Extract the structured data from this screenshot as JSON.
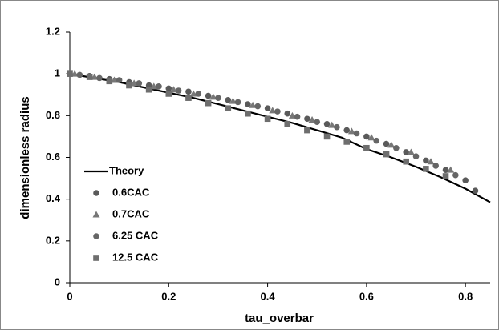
{
  "chart_data": {
    "type": "scatter",
    "xlabel": "tau_overbar",
    "ylabel": "dimensionless radius",
    "xlim": [
      0,
      0.85
    ],
    "ylim": [
      0,
      1.2
    ],
    "xticks": [
      0,
      0.2,
      0.4,
      0.6,
      0.8
    ],
    "yticks": [
      0,
      0.2,
      0.4,
      0.6,
      0.8,
      1,
      1.2
    ],
    "legend": "left",
    "series": [
      {
        "name": "Theory",
        "color": "#000000",
        "marker": "line",
        "x": [
          0,
          0.05,
          0.1,
          0.15,
          0.2,
          0.25,
          0.3,
          0.35,
          0.4,
          0.45,
          0.5,
          0.55,
          0.6,
          0.65,
          0.7,
          0.75,
          0.8,
          0.85
        ],
        "values": [
          1.0,
          0.98,
          0.96,
          0.935,
          0.91,
          0.885,
          0.855,
          0.825,
          0.795,
          0.765,
          0.73,
          0.695,
          0.64,
          0.6,
          0.555,
          0.505,
          0.45,
          0.385
        ]
      },
      {
        "name": "0.6CAC",
        "color": "#5a5a5a",
        "marker": "circle",
        "x": [
          0,
          0.04,
          0.08,
          0.12,
          0.16,
          0.2,
          0.24,
          0.28,
          0.32,
          0.36,
          0.4,
          0.44,
          0.48,
          0.52,
          0.56,
          0.6,
          0.64,
          0.68,
          0.72,
          0.76,
          0.8,
          0.82
        ],
        "values": [
          1.0,
          0.99,
          0.975,
          0.96,
          0.945,
          0.93,
          0.915,
          0.895,
          0.875,
          0.855,
          0.835,
          0.81,
          0.785,
          0.76,
          0.73,
          0.7,
          0.665,
          0.625,
          0.585,
          0.54,
          0.49,
          0.44
        ]
      },
      {
        "name": "0.7CAC",
        "color": "#777777",
        "marker": "triangle",
        "x": [
          0.01,
          0.05,
          0.09,
          0.13,
          0.17,
          0.21,
          0.25,
          0.29,
          0.33,
          0.37,
          0.41,
          0.45,
          0.49,
          0.53,
          0.57,
          0.61,
          0.65,
          0.69,
          0.73,
          0.77
        ],
        "values": [
          1.0,
          0.985,
          0.97,
          0.955,
          0.94,
          0.925,
          0.905,
          0.89,
          0.87,
          0.85,
          0.825,
          0.8,
          0.78,
          0.755,
          0.725,
          0.695,
          0.66,
          0.625,
          0.58,
          0.54
        ]
      },
      {
        "name": "6.25 CAC",
        "color": "#666666",
        "marker": "circle",
        "x": [
          0.02,
          0.06,
          0.1,
          0.14,
          0.18,
          0.22,
          0.26,
          0.3,
          0.34,
          0.38,
          0.42,
          0.46,
          0.5,
          0.54,
          0.58,
          0.62,
          0.66,
          0.7,
          0.74,
          0.78
        ],
        "values": [
          0.995,
          0.98,
          0.97,
          0.955,
          0.94,
          0.92,
          0.905,
          0.885,
          0.865,
          0.845,
          0.82,
          0.795,
          0.77,
          0.745,
          0.715,
          0.68,
          0.645,
          0.605,
          0.56,
          0.515
        ]
      },
      {
        "name": "12.5 CAC",
        "color": "#6e6e6e",
        "marker": "square",
        "x": [
          0,
          0.04,
          0.08,
          0.12,
          0.16,
          0.2,
          0.24,
          0.28,
          0.32,
          0.36,
          0.4,
          0.44,
          0.48,
          0.52,
          0.56,
          0.6,
          0.64,
          0.68,
          0.72,
          0.76
        ],
        "values": [
          1.0,
          0.985,
          0.965,
          0.945,
          0.925,
          0.905,
          0.885,
          0.86,
          0.835,
          0.81,
          0.785,
          0.76,
          0.73,
          0.7,
          0.675,
          0.645,
          0.615,
          0.58,
          0.545,
          0.51
        ]
      }
    ]
  }
}
